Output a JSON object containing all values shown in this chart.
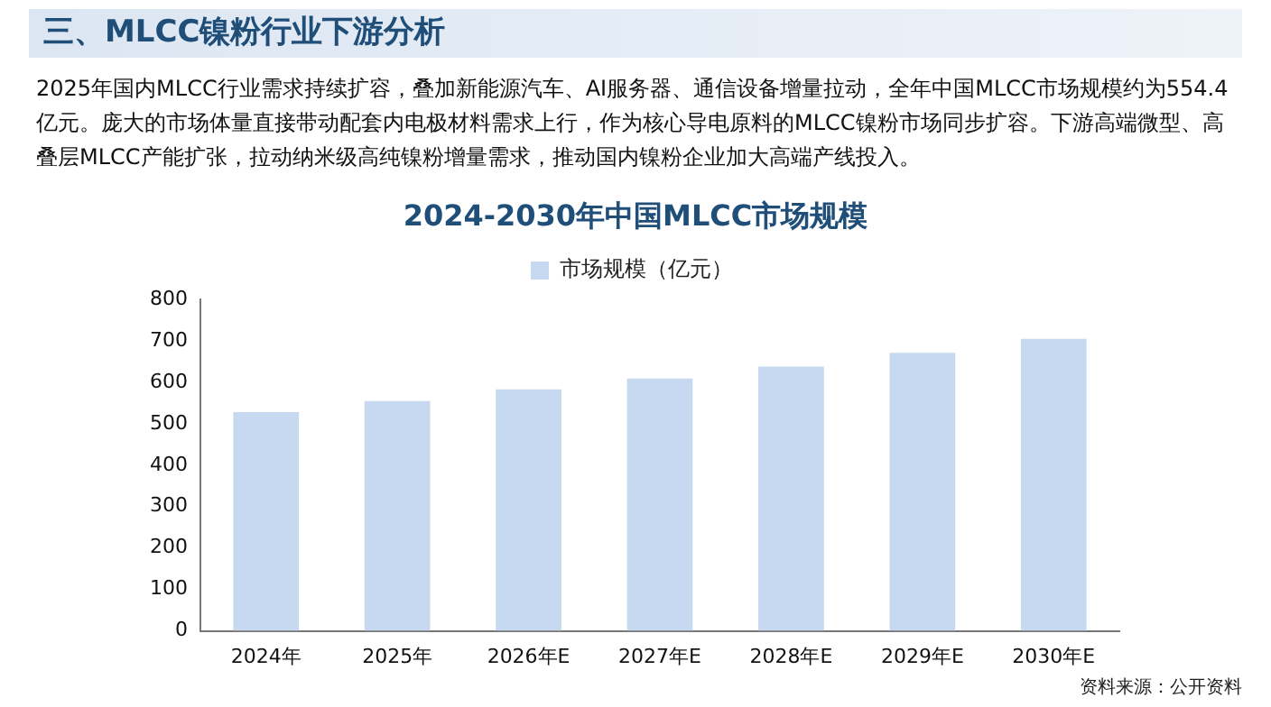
{
  "chart_data": {
    "type": "bar",
    "title": "2024-2030年中国MLCC市场规模",
    "subtitle": "2025年国内MLCC行业需求持续扩容，叠加新能源汽车、AI服务器、通信设备增量拉动，全年中国MLCC市场规模约为554.4亿元。庞大的市场体量直接带动配套内电极材料需求上行，作为核心导电原料的MLCC镍粉市场同步扩容。下游高端微型、高叠层MLCC产能扩张，拉动纳米级高纯镍粉增量需求，推动国内镍粉企业加大高端产线投入。",
    "annotations": [
      "三、MLCC镍粉行业下游分析",
      "资料来源：公开资料"
    ],
    "categories": [
      "2024年",
      "2025年",
      "2026年E",
      "2027年E",
      "2028年E",
      "2029年E",
      "2030年E"
    ],
    "series": [
      {
        "name": "市场规模（亿元）",
        "color": "#c6d9f1",
        "values": [
          528,
          554.4,
          583,
          609,
          638,
          671,
          705
        ]
      }
    ],
    "ylim": [
      0,
      800
    ],
    "yticks": [
      0,
      100,
      200,
      300,
      400,
      500,
      600,
      700,
      800
    ],
    "grid": false,
    "legend": "top"
  }
}
